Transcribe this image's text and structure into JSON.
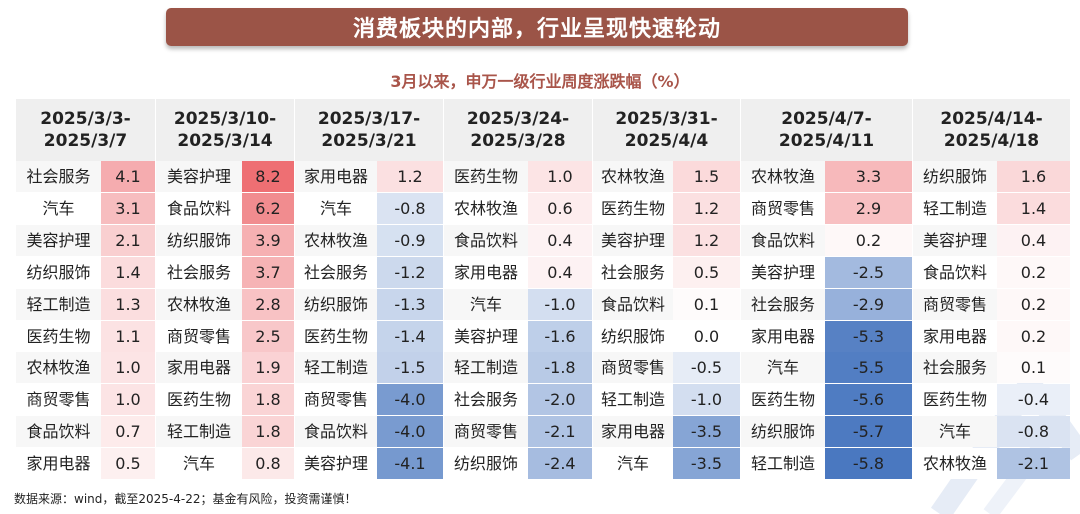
{
  "title": "消费板块的内部，行业呈现快速轮动",
  "subtitle": "3月以来，申万一级行业周度涨跌幅（%）",
  "footnote": "数据来源：wind，截至2025-4-22；基金有风险，投资需谨慎！",
  "colors": {
    "banner": "#9b5447",
    "subtitle": "#a9554a",
    "positive": "#ee6f73",
    "negative": "#4a78c0",
    "neutral": "#ffffff",
    "header_bg": "#efefef",
    "name_bg": "#f7f7f7"
  },
  "chart_data": {
    "type": "table",
    "unit": "%",
    "weeks": [
      {
        "period": [
          "2025/3/3-",
          "2025/3/7"
        ],
        "rows": [
          {
            "industry": "社会服务",
            "value": 4.1
          },
          {
            "industry": "汽车",
            "value": 3.1
          },
          {
            "industry": "美容护理",
            "value": 2.1
          },
          {
            "industry": "纺织服饰",
            "value": 1.4
          },
          {
            "industry": "轻工制造",
            "value": 1.3
          },
          {
            "industry": "医药生物",
            "value": 1.1
          },
          {
            "industry": "农林牧渔",
            "value": 1.0
          },
          {
            "industry": "商贸零售",
            "value": 1.0
          },
          {
            "industry": "食品饮料",
            "value": 0.7
          },
          {
            "industry": "家用电器",
            "value": 0.5
          }
        ]
      },
      {
        "period": [
          "2025/3/10-",
          "2025/3/14"
        ],
        "rows": [
          {
            "industry": "美容护理",
            "value": 8.2
          },
          {
            "industry": "食品饮料",
            "value": 6.2
          },
          {
            "industry": "纺织服饰",
            "value": 3.9
          },
          {
            "industry": "社会服务",
            "value": 3.7
          },
          {
            "industry": "农林牧渔",
            "value": 2.8
          },
          {
            "industry": "商贸零售",
            "value": 2.5
          },
          {
            "industry": "家用电器",
            "value": 1.9
          },
          {
            "industry": "医药生物",
            "value": 1.8
          },
          {
            "industry": "轻工制造",
            "value": 1.8
          },
          {
            "industry": "汽车",
            "value": 0.8
          }
        ]
      },
      {
        "period": [
          "2025/3/17-",
          "2025/3/21"
        ],
        "rows": [
          {
            "industry": "家用电器",
            "value": 1.2
          },
          {
            "industry": "汽车",
            "value": -0.8
          },
          {
            "industry": "农林牧渔",
            "value": -0.9
          },
          {
            "industry": "社会服务",
            "value": -1.2
          },
          {
            "industry": "纺织服饰",
            "value": -1.3
          },
          {
            "industry": "医药生物",
            "value": -1.4
          },
          {
            "industry": "轻工制造",
            "value": -1.5
          },
          {
            "industry": "商贸零售",
            "value": -4.0
          },
          {
            "industry": "食品饮料",
            "value": -4.0
          },
          {
            "industry": "美容护理",
            "value": -4.1
          }
        ]
      },
      {
        "period": [
          "2025/3/24-",
          "2025/3/28"
        ],
        "rows": [
          {
            "industry": "医药生物",
            "value": 1.0
          },
          {
            "industry": "农林牧渔",
            "value": 0.6
          },
          {
            "industry": "食品饮料",
            "value": 0.4
          },
          {
            "industry": "家用电器",
            "value": 0.4
          },
          {
            "industry": "汽车",
            "value": -1.0
          },
          {
            "industry": "美容护理",
            "value": -1.6
          },
          {
            "industry": "轻工制造",
            "value": -1.8
          },
          {
            "industry": "社会服务",
            "value": -2.0
          },
          {
            "industry": "商贸零售",
            "value": -2.1
          },
          {
            "industry": "纺织服饰",
            "value": -2.4
          }
        ]
      },
      {
        "period": [
          "2025/3/31-",
          "2025/4/4"
        ],
        "rows": [
          {
            "industry": "农林牧渔",
            "value": 1.5
          },
          {
            "industry": "医药生物",
            "value": 1.2
          },
          {
            "industry": "美容护理",
            "value": 1.2
          },
          {
            "industry": "社会服务",
            "value": 0.5
          },
          {
            "industry": "食品饮料",
            "value": 0.1
          },
          {
            "industry": "纺织服饰",
            "value": 0.0
          },
          {
            "industry": "商贸零售",
            "value": -0.5
          },
          {
            "industry": "轻工制造",
            "value": -1.0
          },
          {
            "industry": "家用电器",
            "value": -3.5
          },
          {
            "industry": "汽车",
            "value": -3.5
          }
        ]
      },
      {
        "period": [
          "2025/4/7-",
          "2025/4/11"
        ],
        "rows": [
          {
            "industry": "农林牧渔",
            "value": 3.3
          },
          {
            "industry": "商贸零售",
            "value": 2.9
          },
          {
            "industry": "食品饮料",
            "value": 0.2
          },
          {
            "industry": "美容护理",
            "value": -2.5
          },
          {
            "industry": "社会服务",
            "value": -2.9
          },
          {
            "industry": "家用电器",
            "value": -5.3
          },
          {
            "industry": "汽车",
            "value": -5.5
          },
          {
            "industry": "医药生物",
            "value": -5.6
          },
          {
            "industry": "纺织服饰",
            "value": -5.7
          },
          {
            "industry": "轻工制造",
            "value": -5.8
          }
        ]
      },
      {
        "period": [
          "2025/4/14-",
          "2025/4/18"
        ],
        "rows": [
          {
            "industry": "纺织服饰",
            "value": 1.6
          },
          {
            "industry": "轻工制造",
            "value": 1.4
          },
          {
            "industry": "美容护理",
            "value": 0.4
          },
          {
            "industry": "食品饮料",
            "value": 0.2
          },
          {
            "industry": "商贸零售",
            "value": 0.2
          },
          {
            "industry": "家用电器",
            "value": 0.2
          },
          {
            "industry": "社会服务",
            "value": 0.1
          },
          {
            "industry": "医药生物",
            "value": -0.4
          },
          {
            "industry": "汽车",
            "value": -0.8
          },
          {
            "industry": "农林牧渔",
            "value": -2.1
          }
        ]
      }
    ]
  }
}
